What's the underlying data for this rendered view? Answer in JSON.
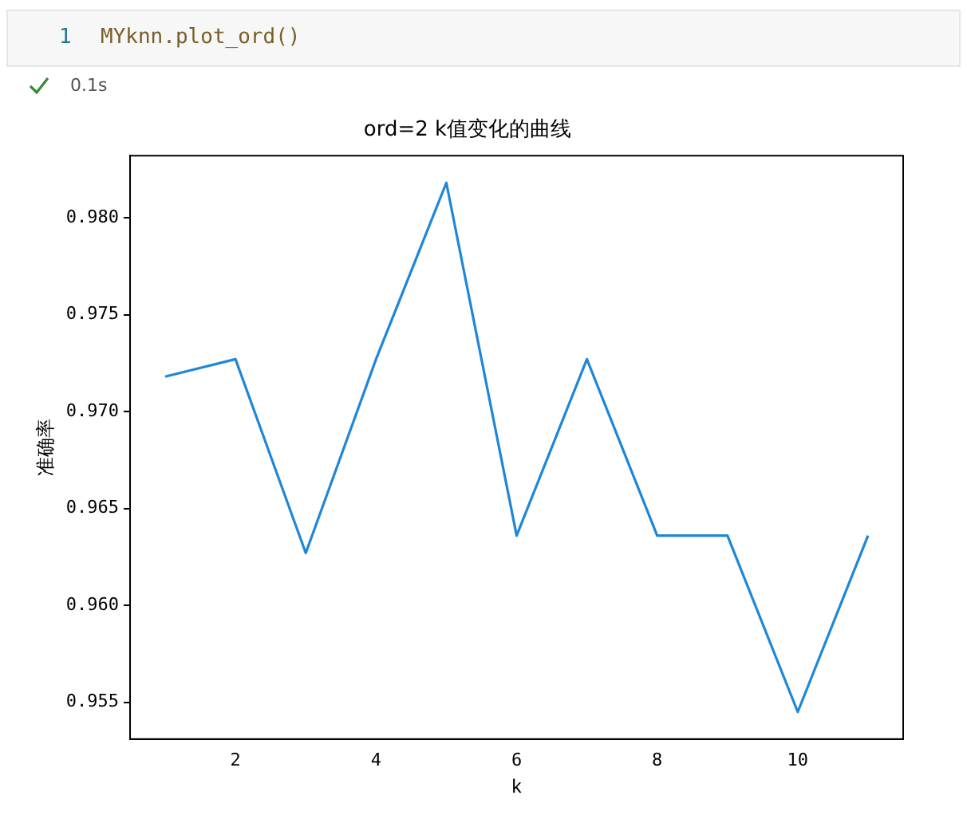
{
  "chart_data": {
    "type": "line",
    "title": "ord=2 k值变化的曲线",
    "xlabel": "k",
    "ylabel": "准确率",
    "annotations": [
      "1",
      "MYknn.plot_ord()",
      "0.1s"
    ],
    "x": [
      1,
      2,
      3,
      4,
      5,
      6,
      7,
      8,
      9,
      10,
      11
    ],
    "series": [
      {
        "color": "#1f86d8",
        "values": [
          0.9718,
          0.9727,
          0.9627,
          0.9727,
          0.9818,
          0.9636,
          0.9727,
          0.9636,
          0.9636,
          0.9545,
          0.9636
        ]
      }
    ],
    "xlim": [
      0.5,
      11.5
    ],
    "xticks": [
      2,
      4,
      6,
      8,
      10
    ],
    "ylim": [
      0.9531,
      0.9832
    ],
    "yticks": [
      {
        "value": 0.955,
        "label": "0.955"
      },
      {
        "value": 0.96,
        "label": "0.960"
      },
      {
        "value": 0.965,
        "label": "0.965"
      },
      {
        "value": 0.97,
        "label": "0.970"
      },
      {
        "value": 0.975,
        "label": "0.975"
      },
      {
        "value": 0.98,
        "label": "0.980"
      }
    ],
    "grid": false,
    "legend": false,
    "marker": "none",
    "line_style": "solid"
  }
}
